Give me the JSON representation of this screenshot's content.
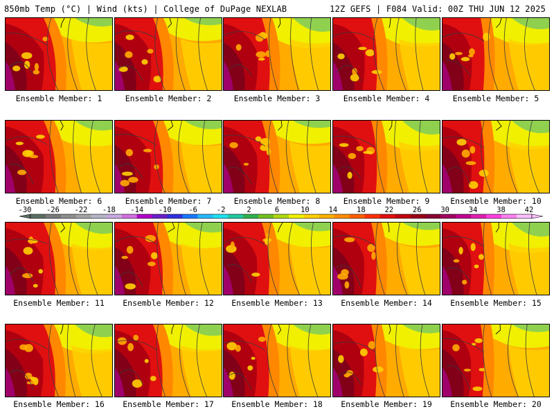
{
  "header": {
    "left": "850mb Temp (°C) | Wind (kts) | College of DuPage NEXLAB",
    "right": "12Z GEFS | F084 Valid: 00Z THU JUN 12 2025"
  },
  "panels": [
    {
      "label": "Ensemble Member: 1"
    },
    {
      "label": "Ensemble Member: 2"
    },
    {
      "label": "Ensemble Member: 3"
    },
    {
      "label": "Ensemble Member: 4"
    },
    {
      "label": "Ensemble Member: 5"
    },
    {
      "label": "Ensemble Member: 6"
    },
    {
      "label": "Ensemble Member: 7"
    },
    {
      "label": "Ensemble Member: 8"
    },
    {
      "label": "Ensemble Member: 9"
    },
    {
      "label": "Ensemble Member: 10"
    },
    {
      "label": "Ensemble Member: 11"
    },
    {
      "label": "Ensemble Member: 12"
    },
    {
      "label": "Ensemble Member: 13"
    },
    {
      "label": "Ensemble Member: 14"
    },
    {
      "label": "Ensemble Member: 15"
    },
    {
      "label": "Ensemble Member: 16"
    },
    {
      "label": "Ensemble Member: 17"
    },
    {
      "label": "Ensemble Member: 18"
    },
    {
      "label": "Ensemble Member: 19"
    },
    {
      "label": "Ensemble Member: 20"
    }
  ],
  "colorbar": {
    "tick_labels": [
      "-30",
      "-26",
      "-22",
      "-18",
      "-14",
      "-10",
      "-6",
      "-2",
      "2",
      "6",
      "10",
      "14",
      "18",
      "22",
      "26",
      "30",
      "34",
      "38",
      "42"
    ],
    "colors": [
      "#5c6e62",
      "#7a7a7a",
      "#8e8e8e",
      "#a3a3a3",
      "#b5b5c8",
      "#c8a8e0",
      "#d070e0",
      "#b000c8",
      "#6a1fc9",
      "#3030e0",
      "#1878ff",
      "#28b8ff",
      "#20e0f0",
      "#20c8a0",
      "#30b050",
      "#70c020",
      "#b0d810",
      "#f0f000",
      "#ffd000",
      "#ffb000",
      "#ff8c00",
      "#ff6000",
      "#ff3000",
      "#e01010",
      "#c00010",
      "#9a0018",
      "#880030",
      "#a00060",
      "#c00090",
      "#e020b0",
      "#ff40e0",
      "#ff80f0",
      "#ffc0ff"
    ]
  },
  "palette": {
    "green": "#8fd14f",
    "yellow": "#f0f000",
    "gold": "#ffd000",
    "orange": "#ffab00",
    "darkorange": "#ff8800",
    "red": "#e01010",
    "crimson": "#b00010",
    "maroon": "#820018",
    "magenta": "#a0006a",
    "contour": "#3a3a3a"
  }
}
